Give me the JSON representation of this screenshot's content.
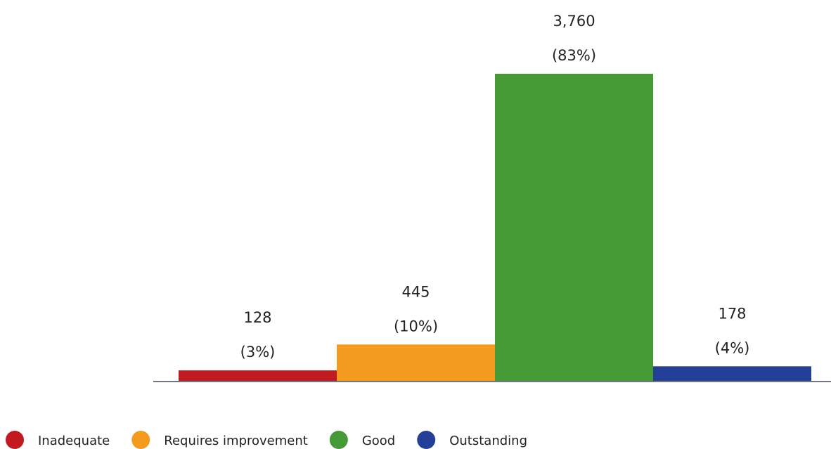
{
  "chart_data": {
    "type": "bar",
    "categories": [
      "Inadequate",
      "Requires improvement",
      "Good",
      "Outstanding"
    ],
    "values": [
      128,
      445,
      3760,
      178
    ],
    "value_labels": [
      "128",
      "445",
      "3,760",
      "178"
    ],
    "percentages": [
      3,
      10,
      83,
      4
    ],
    "percentage_labels": [
      "(3%)",
      "(10%)",
      "(83%)",
      "(4%)"
    ],
    "colors": [
      "#c21b1f",
      "#f29b1e",
      "#469a36",
      "#233f98"
    ],
    "legend": "bottom-left"
  }
}
